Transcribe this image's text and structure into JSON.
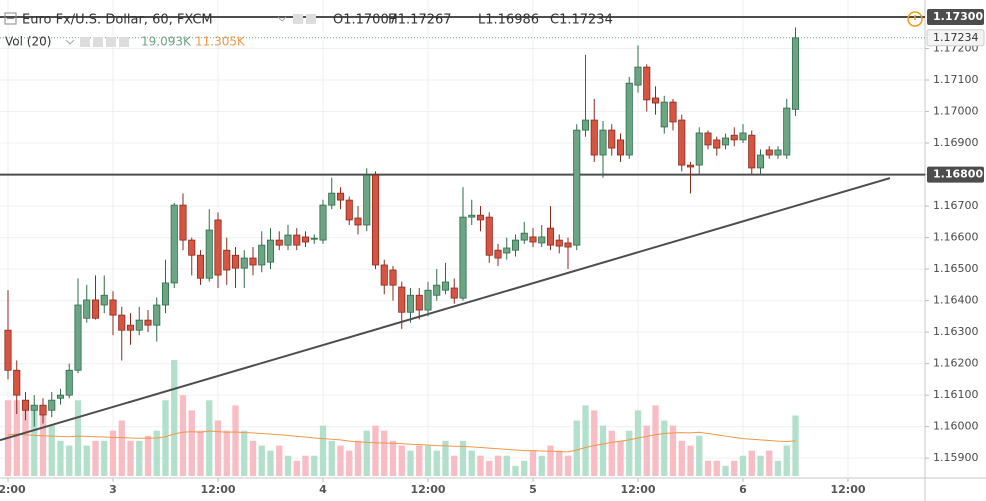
{
  "chart_data": {
    "type": "candlestick",
    "title": "Euro Fx/U.S. Dollar, 60, FXCM",
    "ohlc_labels": [
      "O1.17007",
      "H1.17267",
      "L1.16986",
      "C1.17234"
    ],
    "volume_title": "Vol (20)",
    "volume_labels": [
      "19.093K",
      "11.305K"
    ],
    "x": [
      0,
      1,
      2,
      3,
      4,
      5,
      6,
      7,
      8,
      9,
      10,
      11,
      12,
      13,
      14,
      15,
      16,
      17,
      18,
      19,
      20,
      21,
      22,
      23,
      24,
      25,
      26,
      27,
      28,
      29,
      30,
      31,
      32,
      33,
      34,
      35,
      36,
      37,
      38,
      39,
      40,
      41,
      42,
      43,
      44,
      45,
      46,
      47,
      48,
      49,
      50,
      51,
      52,
      53,
      54,
      55,
      56,
      57,
      58,
      59,
      60,
      61,
      62,
      63,
      64,
      65,
      66,
      67,
      68,
      69,
      70,
      71,
      72,
      73,
      74,
      75,
      76,
      77,
      78,
      79,
      80,
      81,
      82,
      83,
      84,
      85,
      86,
      87,
      88,
      89,
      90
    ],
    "open": [
      1.16306,
      1.16179,
      1.16084,
      1.16052,
      1.16068,
      1.16052,
      1.1609,
      1.161,
      1.16179,
      1.16344,
      1.16402,
      1.16386,
      1.16402,
      1.16354,
      1.16322,
      1.16306,
      1.16338,
      1.16322,
      1.16386,
      1.16456,
      1.16703,
      1.16592,
      1.16544,
      1.16471,
      1.16656,
      1.1656,
      1.16544,
      1.16503,
      1.16535,
      1.16513,
      1.16522,
      1.16592,
      1.16576,
      1.16608,
      1.16602,
      1.16596,
      1.16592,
      1.16703,
      1.16741,
      1.16719,
      1.16662,
      1.1664,
      1.16798,
      1.16513,
      1.16497,
      1.16443,
      1.16363,
      1.16417,
      1.1637,
      1.16417,
      1.16433,
      1.1644,
      1.16408,
      1.16665,
      1.16671,
      1.16665,
      1.1656,
      1.16551,
      1.1656,
      1.16592,
      1.16602,
      1.16583,
      1.1663,
      1.16592,
      1.16583,
      1.16576,
      1.16941,
      1.16973,
      1.16862,
      1.16941,
      1.1691,
      1.16862,
      1.17084,
      1.17141,
      1.17043,
      1.16951,
      1.1703,
      1.16973,
      1.1683,
      1.1683,
      1.16932,
      1.1691,
      1.16894,
      1.16925,
      1.1691,
      1.16925,
      1.16821,
      1.16878,
      1.16862,
      1.16862,
      1.17007
    ],
    "high": [
      1.16433,
      1.1621,
      1.1611,
      1.161,
      1.1609,
      1.1611,
      1.1612,
      1.162,
      1.1647,
      1.1645,
      1.1648,
      1.1648,
      1.1643,
      1.1638,
      1.1636,
      1.1638,
      1.1637,
      1.1641,
      1.1653,
      1.1671,
      1.1674,
      1.166,
      1.1656,
      1.1669,
      1.1668,
      1.166,
      1.1657,
      1.1656,
      1.1657,
      1.1662,
      1.1663,
      1.1662,
      1.1664,
      1.1663,
      1.1662,
      1.1661,
      1.1672,
      1.1679,
      1.1676,
      1.1673,
      1.167,
      1.1682,
      1.1681,
      1.1653,
      1.1651,
      1.1646,
      1.1644,
      1.1644,
      1.1646,
      1.165,
      1.1652,
      1.1647,
      1.1676,
      1.1672,
      1.167,
      1.1668,
      1.1658,
      1.166,
      1.1661,
      1.1665,
      1.1663,
      1.1664,
      1.167,
      1.1661,
      1.166,
      1.1696,
      1.1718,
      1.1704,
      1.1697,
      1.1696,
      1.1693,
      1.1711,
      1.1721,
      1.1715,
      1.1708,
      1.1705,
      1.1704,
      1.1699,
      1.1684,
      1.1695,
      1.1694,
      1.1692,
      1.1693,
      1.1695,
      1.1696,
      1.1694,
      1.1688,
      1.1689,
      1.1689,
      1.1704,
      1.17267
    ],
    "low": [
      1.1615,
      1.1604,
      1.1602,
      1.16,
      1.1601,
      1.1603,
      1.1607,
      1.1609,
      1.1617,
      1.1633,
      1.1634,
      1.1636,
      1.1629,
      1.1621,
      1.1626,
      1.1629,
      1.163,
      1.1627,
      1.1636,
      1.1644,
      1.1656,
      1.1648,
      1.1645,
      1.1646,
      1.1644,
      1.1645,
      1.1644,
      1.1644,
      1.1648,
      1.1649,
      1.165,
      1.1656,
      1.1656,
      1.1656,
      1.1657,
      1.1658,
      1.1658,
      1.1669,
      1.1669,
      1.1664,
      1.1661,
      1.1662,
      1.165,
      1.1642,
      1.164,
      1.1631,
      1.1633,
      1.1634,
      1.1635,
      1.164,
      1.1642,
      1.1639,
      1.164,
      1.1664,
      1.1662,
      1.1652,
      1.1651,
      1.1653,
      1.1654,
      1.1658,
      1.1657,
      1.1657,
      1.1656,
      1.1655,
      1.165,
      1.1656,
      1.1692,
      1.1684,
      1.1679,
      1.1686,
      1.1684,
      1.1685,
      1.1706,
      1.17,
      1.1699,
      1.1693,
      1.1694,
      1.1681,
      1.1674,
      1.168,
      1.1688,
      1.1686,
      1.1688,
      1.1689,
      1.169,
      1.168,
      1.168,
      1.1685,
      1.1685,
      1.1685,
      1.16986
    ],
    "close": [
      1.16179,
      1.161,
      1.16052,
      1.16068,
      1.16037,
      1.16084,
      1.161,
      1.16179,
      1.16386,
      1.16402,
      1.16344,
      1.16417,
      1.16354,
      1.16306,
      1.16306,
      1.16338,
      1.16322,
      1.16386,
      1.16456,
      1.16703,
      1.16592,
      1.16544,
      1.16471,
      1.16624,
      1.16481,
      1.16497,
      1.16503,
      1.16535,
      1.16513,
      1.16576,
      1.16592,
      1.16576,
      1.16608,
      1.16576,
      1.16586,
      1.16598,
      1.16703,
      1.16741,
      1.16719,
      1.16656,
      1.1664,
      1.16798,
      1.16513,
      1.16449,
      1.16449,
      1.16363,
      1.16417,
      1.1637,
      1.16433,
      1.16449,
      1.16459,
      1.16408,
      1.16665,
      1.16671,
      1.16656,
      1.16544,
      1.16535,
      1.16567,
      1.16592,
      1.16614,
      1.16586,
      1.16602,
      1.16576,
      1.16573,
      1.1657,
      1.16941,
      1.16973,
      1.16862,
      1.16941,
      1.16884,
      1.16862,
      1.1709,
      1.17141,
      1.17037,
      1.17027,
      1.1703,
      1.16967,
      1.1683,
      1.16824,
      1.16932,
      1.16894,
      1.16884,
      1.16916,
      1.1691,
      1.16932,
      1.16821,
      1.16862,
      1.16862,
      1.16878,
      1.17011,
      1.17234
    ],
    "volume": [
      23.9,
      23.9,
      22.3,
      20.7,
      19.1,
      15.9,
      11.1,
      9.6,
      23.9,
      9.6,
      11.1,
      11.1,
      14.3,
      17.5,
      11.1,
      11.1,
      12.7,
      14.3,
      23.9,
      36.6,
      25.5,
      20.7,
      14.3,
      23.9,
      17.5,
      14.3,
      22.3,
      14.3,
      11.1,
      9.6,
      8.0,
      9.6,
      6.4,
      4.8,
      6.4,
      6.4,
      15.9,
      11.1,
      9.6,
      8.0,
      11.1,
      14.3,
      15.9,
      14.3,
      11.1,
      9.6,
      8.0,
      9.6,
      9.6,
      8.0,
      11.1,
      6.4,
      11.1,
      8.0,
      6.4,
      4.8,
      6.4,
      6.4,
      3.2,
      4.8,
      8.0,
      6.4,
      9.6,
      8.0,
      6.4,
      17.5,
      22.3,
      20.7,
      15.9,
      14.3,
      11.1,
      14.3,
      20.7,
      15.9,
      22.3,
      17.5,
      15.9,
      11.1,
      9.6,
      12.7,
      4.8,
      4.8,
      3.2,
      4.8,
      6.4,
      8.0,
      6.4,
      8.0,
      4.8,
      9.6,
      19.093
    ],
    "volume_ma": [
      13.0,
      13.2,
      13.0,
      12.8,
      12.7,
      12.6,
      12.5,
      12.4,
      12.6,
      12.5,
      12.4,
      12.3,
      12.2,
      12.1,
      12.0,
      11.9,
      11.9,
      12.0,
      12.4,
      13.3,
      13.8,
      14.0,
      13.8,
      14.2,
      14.0,
      13.8,
      13.9,
      13.7,
      13.6,
      13.4,
      13.2,
      13.0,
      12.8,
      12.5,
      12.3,
      12.0,
      11.8,
      11.6,
      11.4,
      11.0,
      10.8,
      10.6,
      10.5,
      10.4,
      10.3,
      10.2,
      10.0,
      9.9,
      9.8,
      9.6,
      9.5,
      9.4,
      9.3,
      9.2,
      9.0,
      8.8,
      8.6,
      8.4,
      8.2,
      8.0,
      8.0,
      7.9,
      7.8,
      7.7,
      7.6,
      8.2,
      9.0,
      9.6,
      10.1,
      10.6,
      11.0,
      11.4,
      12.0,
      12.5,
      13.0,
      13.4,
      13.6,
      13.7,
      13.6,
      13.8,
      13.4,
      13.0,
      12.6,
      12.2,
      11.8,
      11.6,
      11.4,
      11.2,
      11.0,
      10.9,
      11.1,
      11.305
    ],
    "up_color": "#6ba583",
    "down_color": "#d75442",
    "volume_up_color": "#b3e0cb",
    "volume_down_color": "#f7bcc4",
    "ma_color": "#f0974a",
    "line_color": "#4d4d4d",
    "xlim": [
      -0.914,
      104.8
    ],
    "xticks": [
      {
        "value": 0,
        "label": "2:00"
      },
      {
        "value": 12,
        "label": "3"
      },
      {
        "value": 24,
        "label": "12:00"
      },
      {
        "value": 36,
        "label": "4"
      },
      {
        "value": 48,
        "label": "12:00"
      },
      {
        "value": 60,
        "label": "5"
      },
      {
        "value": 72,
        "label": "12:00"
      },
      {
        "value": 84,
        "label": "6"
      },
      {
        "value": 96,
        "label": "12:00"
      }
    ],
    "ylim": [
      1.15837,
      1.17354
    ],
    "yticks": [
      {
        "value": 1.159,
        "label": "1.15900"
      },
      {
        "value": 1.16,
        "label": "1.16000"
      },
      {
        "value": 1.161,
        "label": "1.16100"
      },
      {
        "value": 1.162,
        "label": "1.16200"
      },
      {
        "value": 1.163,
        "label": "1.16300"
      },
      {
        "value": 1.164,
        "label": "1.16400"
      },
      {
        "value": 1.165,
        "label": "1.16500"
      },
      {
        "value": 1.166,
        "label": "1.16600"
      },
      {
        "value": 1.167,
        "label": "1.16700"
      },
      {
        "value": 1.168,
        "label": "1.16800"
      },
      {
        "value": 1.169,
        "label": "1.16900"
      },
      {
        "value": 1.17,
        "label": "1.17000"
      },
      {
        "value": 1.171,
        "label": "1.17100"
      },
      {
        "value": 1.172,
        "label": "1.17200"
      }
    ],
    "hlines": [
      {
        "value": 1.173,
        "label": "1.17300"
      },
      {
        "value": 1.168,
        "label": "1.16800"
      }
    ],
    "last_price": {
      "value": 1.17234,
      "label": "1.17234"
    },
    "trendline": {
      "x": [
        -0.914,
        100.8
      ],
      "y": [
        1.15957,
        1.16789
      ]
    },
    "grid": true
  }
}
